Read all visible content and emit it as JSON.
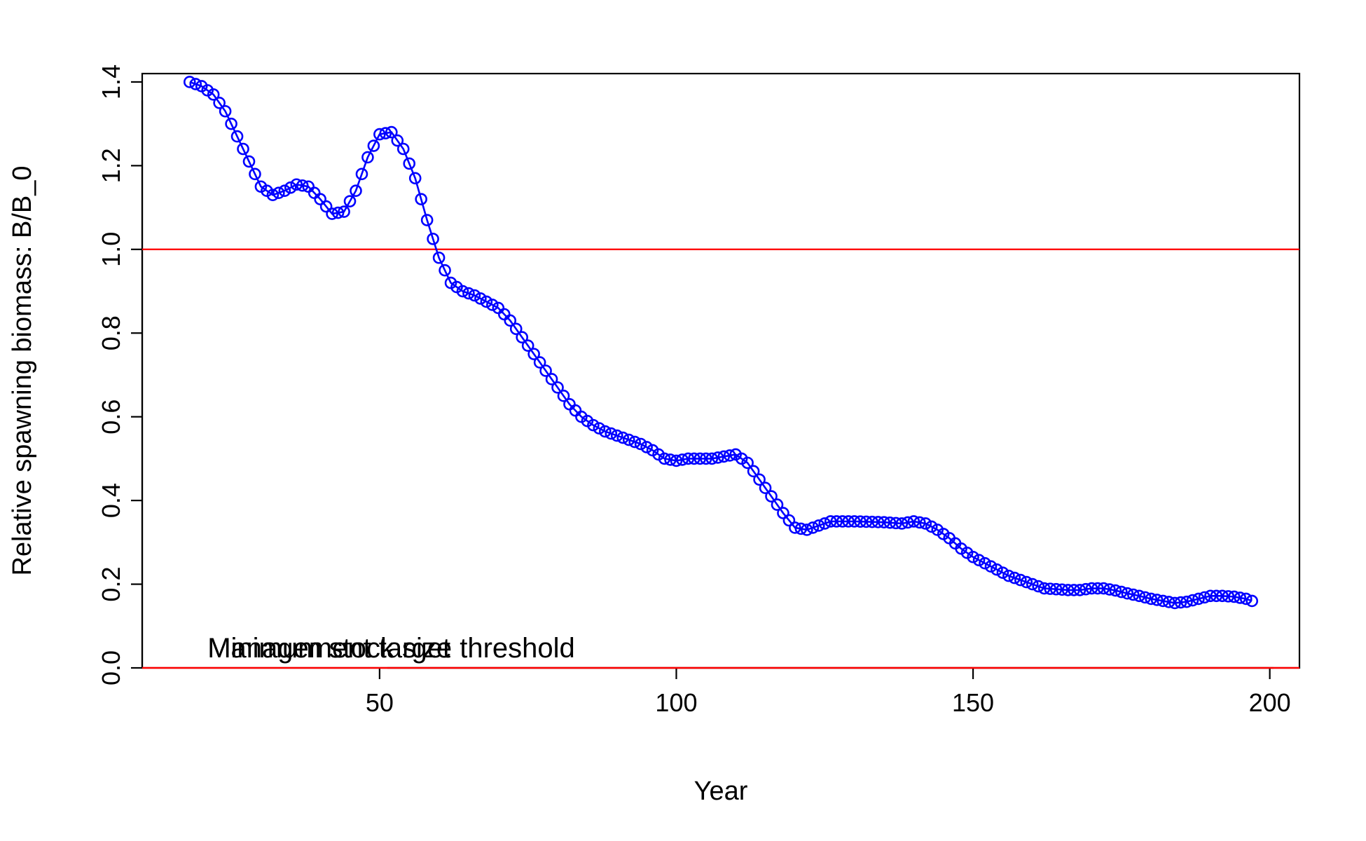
{
  "chart_data": {
    "type": "line",
    "title": "",
    "xlabel": "Year",
    "ylabel": "Relative spawning biomass: B/B_0",
    "xlim": [
      10,
      205
    ],
    "ylim": [
      0,
      1.42
    ],
    "x_ticks": [
      50,
      100,
      150,
      200
    ],
    "x_tick_labels": [
      "50",
      "100",
      "150",
      "200"
    ],
    "y_ticks": [
      0,
      0.2,
      0.4,
      0.6,
      0.8,
      1.0,
      1.2,
      1.4
    ],
    "y_tick_labels": [
      "0.0",
      "0.2",
      "0.4",
      "0.6",
      "0.8",
      "1.0",
      "1.2",
      "1.4"
    ],
    "grid": false,
    "series": [
      {
        "color": "#0000ff",
        "style": "line-with-open-circles",
        "knots": [
          [
            18,
            1.4
          ],
          [
            20,
            1.39
          ],
          [
            22,
            1.37
          ],
          [
            24,
            1.33
          ],
          [
            26,
            1.27
          ],
          [
            28,
            1.21
          ],
          [
            30,
            1.15
          ],
          [
            32,
            1.13
          ],
          [
            34,
            1.14
          ],
          [
            36,
            1.155
          ],
          [
            38,
            1.15
          ],
          [
            40,
            1.12
          ],
          [
            42,
            1.085
          ],
          [
            44,
            1.09
          ],
          [
            46,
            1.14
          ],
          [
            48,
            1.22
          ],
          [
            50,
            1.275
          ],
          [
            52,
            1.28
          ],
          [
            54,
            1.24
          ],
          [
            56,
            1.17
          ],
          [
            58,
            1.07
          ],
          [
            60,
            0.98
          ],
          [
            62,
            0.92
          ],
          [
            64,
            0.9
          ],
          [
            66,
            0.89
          ],
          [
            68,
            0.875
          ],
          [
            70,
            0.86
          ],
          [
            72,
            0.83
          ],
          [
            74,
            0.79
          ],
          [
            76,
            0.75
          ],
          [
            78,
            0.71
          ],
          [
            80,
            0.67
          ],
          [
            82,
            0.63
          ],
          [
            84,
            0.6
          ],
          [
            86,
            0.58
          ],
          [
            88,
            0.565
          ],
          [
            90,
            0.555
          ],
          [
            92,
            0.545
          ],
          [
            94,
            0.535
          ],
          [
            96,
            0.52
          ],
          [
            98,
            0.5
          ],
          [
            100,
            0.495
          ],
          [
            102,
            0.5
          ],
          [
            104,
            0.5
          ],
          [
            106,
            0.5
          ],
          [
            108,
            0.505
          ],
          [
            110,
            0.51
          ],
          [
            112,
            0.49
          ],
          [
            114,
            0.45
          ],
          [
            116,
            0.41
          ],
          [
            118,
            0.37
          ],
          [
            120,
            0.335
          ],
          [
            122,
            0.33
          ],
          [
            124,
            0.34
          ],
          [
            126,
            0.35
          ],
          [
            130,
            0.35
          ],
          [
            135,
            0.348
          ],
          [
            138,
            0.345
          ],
          [
            140,
            0.35
          ],
          [
            142,
            0.345
          ],
          [
            144,
            0.33
          ],
          [
            146,
            0.31
          ],
          [
            148,
            0.285
          ],
          [
            150,
            0.265
          ],
          [
            152,
            0.25
          ],
          [
            154,
            0.235
          ],
          [
            156,
            0.22
          ],
          [
            158,
            0.21
          ],
          [
            160,
            0.2
          ],
          [
            162,
            0.19
          ],
          [
            164,
            0.188
          ],
          [
            166,
            0.186
          ],
          [
            168,
            0.186
          ],
          [
            170,
            0.19
          ],
          [
            172,
            0.19
          ],
          [
            174,
            0.185
          ],
          [
            176,
            0.178
          ],
          [
            178,
            0.172
          ],
          [
            180,
            0.165
          ],
          [
            182,
            0.16
          ],
          [
            184,
            0.155
          ],
          [
            186,
            0.158
          ],
          [
            188,
            0.165
          ],
          [
            190,
            0.172
          ],
          [
            192,
            0.172
          ],
          [
            194,
            0.17
          ],
          [
            196,
            0.165
          ],
          [
            197,
            0.16
          ]
        ]
      }
    ],
    "reference_lines": [
      {
        "y": 1.0,
        "color": "#ff0000"
      },
      {
        "y": 0.0,
        "color": "#ff0000"
      }
    ],
    "annotations": [
      {
        "text": "Management target",
        "x": 21,
        "y": 0.025
      },
      {
        "text": "Minimum stock size threshold",
        "x": 21,
        "y": 0.025
      }
    ]
  }
}
